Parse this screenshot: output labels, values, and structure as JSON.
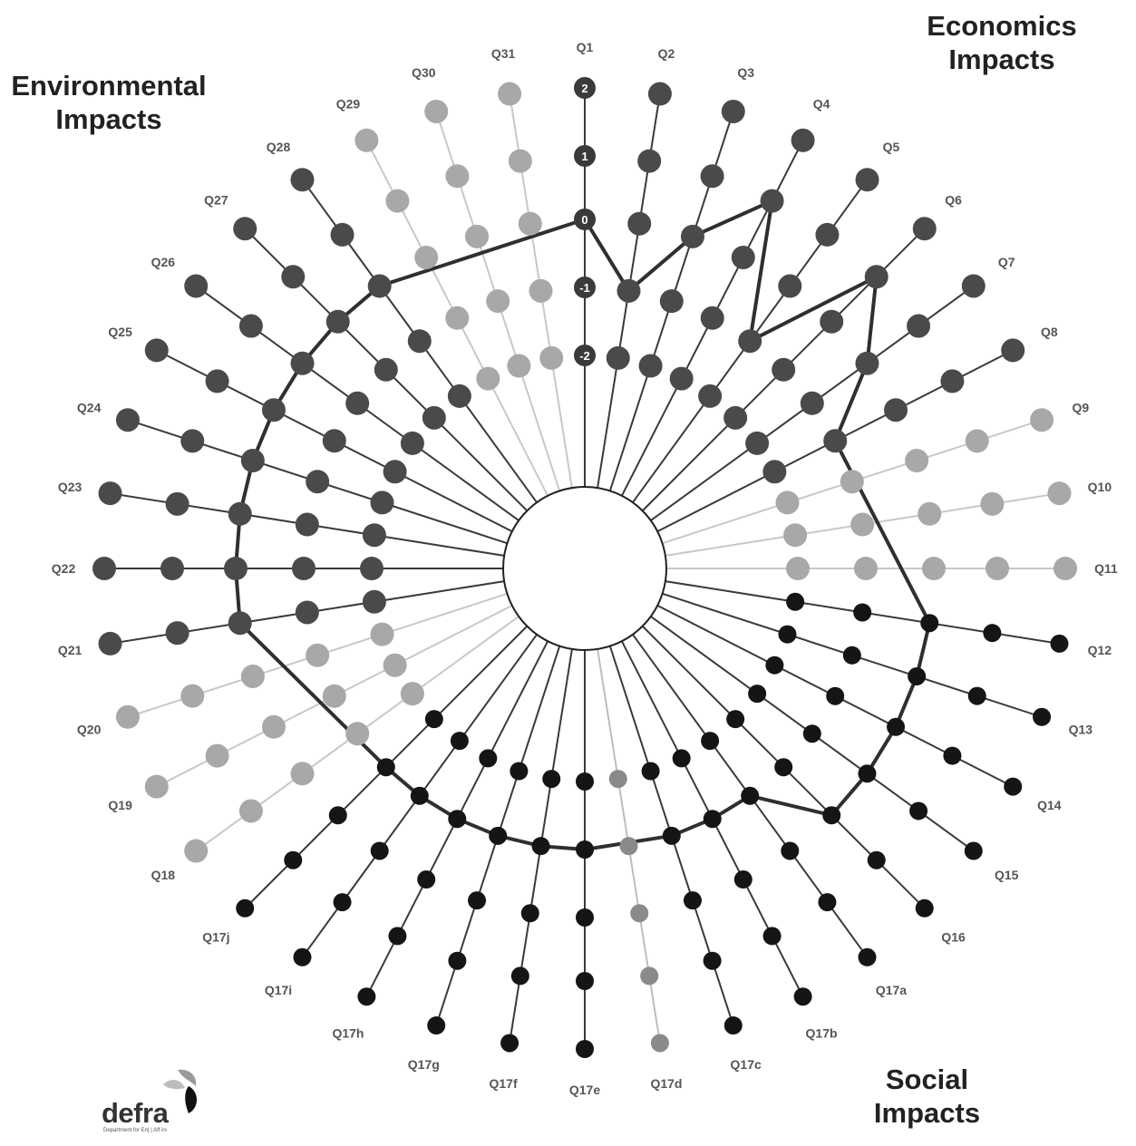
{
  "corner_labels": {
    "environmental": [
      "Environmental",
      "Impacts"
    ],
    "economics": [
      "Economics",
      "Impacts"
    ],
    "social": [
      "Social",
      "Impacts"
    ]
  },
  "logo": {
    "wordmark": "defra",
    "subtext": "Department for En|    | Aff irs"
  },
  "colors": {
    "dark": "#4a4a4a",
    "light": "#a8a8a8",
    "black": "#151515",
    "mid": "#8a8a8a"
  },
  "chart_data": {
    "type": "radar",
    "title": "",
    "scale_values": [
      -2,
      -1,
      0,
      1,
      2
    ],
    "scale_labels": [
      "-2",
      "-1",
      "0",
      "1",
      "2"
    ],
    "categories": [
      "Q1",
      "Q2",
      "Q3",
      "Q4",
      "Q5",
      "Q6",
      "Q7",
      "Q8",
      "Q9",
      "Q10",
      "Q11",
      "Q12",
      "Q13",
      "Q14",
      "Q15",
      "Q16",
      "Q17a",
      "Q17b",
      "Q17c",
      "Q17d",
      "Q17e",
      "Q17f",
      "Q17g",
      "Q17h",
      "Q17i",
      "Q17j",
      "Q18",
      "Q19",
      "Q20",
      "Q21",
      "Q22",
      "Q23",
      "Q24",
      "Q25",
      "Q26",
      "Q27",
      "Q28",
      "Q29",
      "Q30",
      "Q31"
    ],
    "groups": [
      "dark",
      "dark",
      "dark",
      "dark",
      "dark",
      "dark",
      "dark",
      "dark",
      "light",
      "light",
      "light",
      "black",
      "black",
      "black",
      "black",
      "black",
      "black",
      "black",
      "black",
      "mid",
      "black",
      "black",
      "black",
      "black",
      "black",
      "black",
      "light",
      "light",
      "light",
      "dark",
      "dark",
      "dark",
      "dark",
      "dark",
      "dark",
      "dark",
      "dark",
      "light",
      "light",
      "light"
    ],
    "series": [
      {
        "values": [
          0,
          -1,
          0,
          1,
          -1,
          1,
          0,
          -1,
          null,
          null,
          null,
          0,
          0,
          0,
          0,
          0,
          -1,
          -1,
          -1,
          null,
          -1,
          -1,
          -1,
          -1,
          -1,
          -1,
          null,
          null,
          null,
          0,
          0,
          0,
          0,
          0,
          0,
          0,
          0,
          null,
          null,
          null
        ]
      }
    ]
  }
}
